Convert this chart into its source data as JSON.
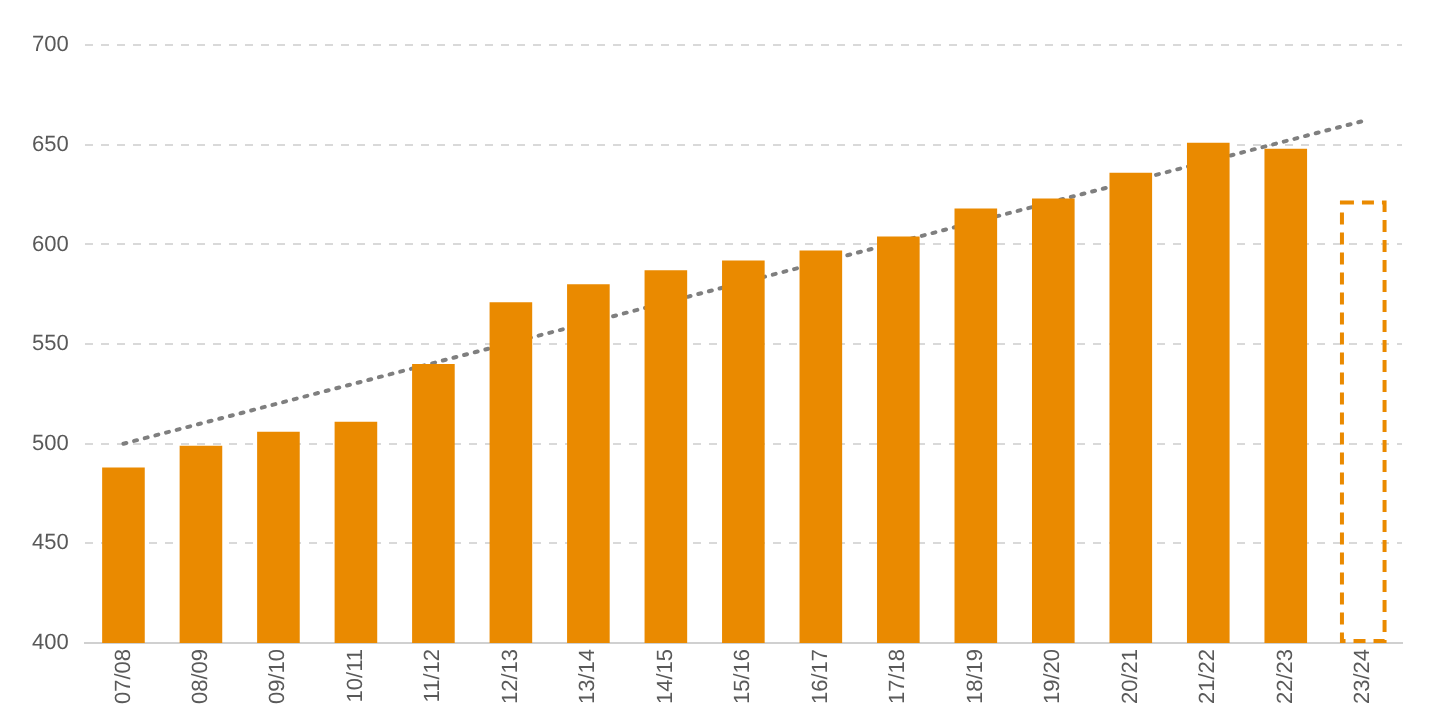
{
  "chart_data": {
    "type": "bar",
    "categories": [
      "07/08",
      "08/09",
      "09/10",
      "10/11",
      "11/12",
      "12/13",
      "13/14",
      "14/15",
      "15/16",
      "16/17",
      "17/18",
      "18/19",
      "19/20",
      "20/21",
      "21/22",
      "22/23",
      "23/24"
    ],
    "series": [
      {
        "color": "#ea8a00",
        "values": [
          488,
          499,
          506,
          511,
          540,
          571,
          580,
          587,
          592,
          597,
          604,
          618,
          623,
          636,
          651,
          648,
          null
        ]
      },
      {
        "color": "#ea8a00",
        "line_style": "dashed",
        "values": [
          null,
          null,
          null,
          null,
          null,
          null,
          null,
          null,
          null,
          null,
          null,
          null,
          null,
          null,
          null,
          null,
          621
        ]
      },
      {
        "type": "line",
        "color": "#7f7f7f",
        "line_style": "dotted",
        "marker": "none",
        "x": [
          "07/08",
          "23/24"
        ],
        "values": [
          500,
          662
        ]
      }
    ],
    "ylim": [
      400,
      700
    ],
    "yticks": [
      400,
      450,
      500,
      550,
      600,
      650,
      700
    ],
    "grid": "y",
    "legend": false
  }
}
